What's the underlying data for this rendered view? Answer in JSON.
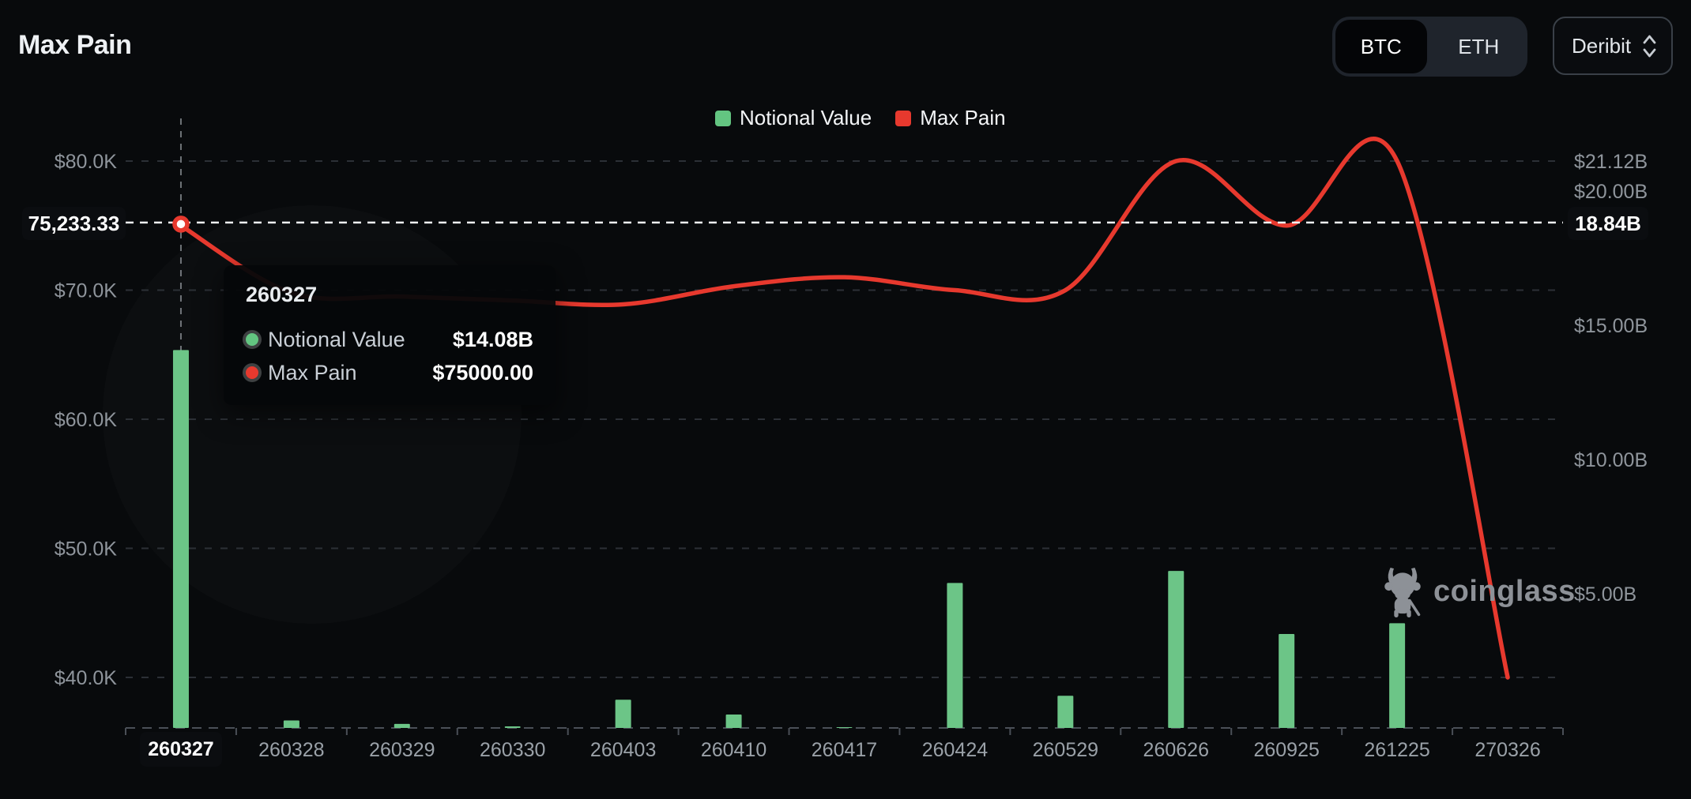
{
  "header": {
    "title": "Max Pain"
  },
  "controls": {
    "asset_toggle": {
      "options": [
        "BTC",
        "ETH"
      ],
      "selected": "BTC"
    },
    "exchange_select": {
      "value": "Deribit"
    }
  },
  "legend": [
    {
      "label": "Notional Value",
      "color": "#63c581"
    },
    {
      "label": "Max Pain",
      "color": "#e7392e"
    }
  ],
  "tooltip": {
    "title": "260327",
    "rows": [
      {
        "label": "Notional Value",
        "value": "$14.08B",
        "color": "#63c581"
      },
      {
        "label": "Max Pain",
        "value": "$75000.00",
        "color": "#e7392e"
      }
    ]
  },
  "crosshair": {
    "left_label": "75,233.33",
    "right_label": "18.84B",
    "x_label": "260327"
  },
  "watermark": {
    "text": "coinglass"
  },
  "colors": {
    "bar": "#6cc587",
    "line": "#e7392e",
    "grid": "#2c3036",
    "axis_line": "#4a4f57",
    "axis_text": "#8f959c"
  },
  "chart_data": {
    "type": "bar+line",
    "title": "Max Pain",
    "categories": [
      "260327",
      "260328",
      "260329",
      "260330",
      "260403",
      "260410",
      "260417",
      "260424",
      "260529",
      "260626",
      "260925",
      "261225",
      "270326"
    ],
    "series": [
      {
        "name": "Notional Value",
        "type": "bar",
        "axis": "right",
        "unit": "B USD",
        "values": [
          14.08,
          0.28,
          0.15,
          0.06,
          1.05,
          0.5,
          0.03,
          5.4,
          1.2,
          5.85,
          3.5,
          3.9,
          0
        ]
      },
      {
        "name": "Max Pain",
        "type": "line",
        "axis": "left",
        "unit": "USD",
        "values": [
          75000,
          69800,
          69500,
          69200,
          68900,
          70300,
          71000,
          70000,
          70000,
          80000,
          75000,
          80000,
          40000
        ]
      }
    ],
    "left_axis": {
      "ticks": [
        "$80.0K",
        "$70.0K",
        "$60.0K",
        "$50.0K",
        "$40.0K"
      ],
      "tick_values": [
        80000,
        70000,
        60000,
        50000,
        40000
      ],
      "max": 80000
    },
    "right_axis": {
      "ticks": [
        "$21.12B",
        "$20.00B",
        "$15.00B",
        "$10.00B",
        "$5.00B"
      ],
      "tick_values": [
        21.12,
        20,
        15,
        10,
        5
      ],
      "max": 21.12
    },
    "highlighted_category": "260327",
    "crosshair_values": {
      "left": 75233.33,
      "right": 18.84
    },
    "legend_position": "top-center",
    "grid": "horizontal-dashed"
  }
}
